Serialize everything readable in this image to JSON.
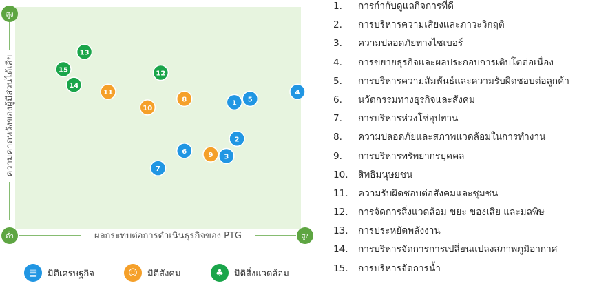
{
  "colors": {
    "economic": "#2196e3",
    "social": "#f5a02a",
    "environment": "#1aa54a",
    "plot_bg": "#e7f4df",
    "axis": "#5ea542"
  },
  "axis_labels": {
    "x": "ผลกระทบต่อการดำเนินธุรกิจของ PTG",
    "y": "ความคาดหวังของผู้มีส่วนได้เสีย",
    "low": "ต่ำ",
    "high_x": "สูง",
    "high_y": "สูง"
  },
  "legend": [
    {
      "icon": "chart-screen-icon",
      "label": "มิติเศรษฐกิจ",
      "color": "#2196e3"
    },
    {
      "icon": "people-icon",
      "label": "มิติสังคม",
      "color": "#f5a02a"
    },
    {
      "icon": "plant-icon",
      "label": "มิติสิ่งแวดล้อม",
      "color": "#1aa54a"
    }
  ],
  "chart_data": {
    "type": "scatter",
    "xlabel": "ผลกระทบต่อการดำเนินธุรกิจของ PTG",
    "ylabel": "ความคาดหวังของผู้มีส่วนได้เสีย",
    "xlim": [
      0,
      10
    ],
    "ylim": [
      0,
      10
    ],
    "grid": false,
    "points": [
      {
        "id": "1",
        "x": 7.6,
        "y": 5.7,
        "category": "economic"
      },
      {
        "id": "2",
        "x": 7.7,
        "y": 3.6,
        "category": "economic"
      },
      {
        "id": "3",
        "x": 7.3,
        "y": 2.6,
        "category": "economic"
      },
      {
        "id": "4",
        "x": 10.0,
        "y": 6.3,
        "category": "economic"
      },
      {
        "id": "5",
        "x": 8.2,
        "y": 5.9,
        "category": "economic"
      },
      {
        "id": "6",
        "x": 5.7,
        "y": 2.9,
        "category": "economic"
      },
      {
        "id": "7",
        "x": 4.7,
        "y": 1.9,
        "category": "economic"
      },
      {
        "id": "8",
        "x": 5.7,
        "y": 5.9,
        "category": "social"
      },
      {
        "id": "9",
        "x": 6.7,
        "y": 2.7,
        "category": "social"
      },
      {
        "id": "10",
        "x": 4.3,
        "y": 5.4,
        "category": "social"
      },
      {
        "id": "11",
        "x": 2.8,
        "y": 6.3,
        "category": "social"
      },
      {
        "id": "12",
        "x": 4.8,
        "y": 7.4,
        "category": "environment"
      },
      {
        "id": "13",
        "x": 1.9,
        "y": 8.6,
        "category": "environment"
      },
      {
        "id": "14",
        "x": 1.5,
        "y": 6.7,
        "category": "environment"
      },
      {
        "id": "15",
        "x": 1.1,
        "y": 7.6,
        "category": "environment"
      }
    ]
  },
  "topics": [
    {
      "num": "1.",
      "text": "การกำกับดูแลกิจการที่ดี"
    },
    {
      "num": "2.",
      "text": "การบริหารความเสี่ยงและภาวะวิกฤติ"
    },
    {
      "num": "3.",
      "text": "ความปลอดภัยทางไซเบอร์"
    },
    {
      "num": "4.",
      "text": "การขยายธุรกิจและผลประกอบการเติบโตต่อเนื่อง"
    },
    {
      "num": "5.",
      "text": "การบริหารความสัมพันธ์และความรับผิดชอบต่อลูกค้า"
    },
    {
      "num": "6.",
      "text": "นวัตกรรมทางธุรกิจและสังคม"
    },
    {
      "num": "7.",
      "text": "การบริหารห่วงโซ่อุปทาน"
    },
    {
      "num": "8.",
      "text": "ความปลอดภัยและสภาพแวดล้อมในการทำงาน"
    },
    {
      "num": "9.",
      "text": "การบริหารทรัพยากรบุคคล"
    },
    {
      "num": "10.",
      "text": "สิทธิมนุษยชน"
    },
    {
      "num": "11.",
      "text": "ความรับผิดชอบต่อสังคมและชุมชน"
    },
    {
      "num": "12.",
      "text": "การจัดการสิ่งแวดล้อม ขยะ ของเสีย และมลพิษ"
    },
    {
      "num": "13.",
      "text": "การประหยัดพลังงาน"
    },
    {
      "num": "14.",
      "text": "การบริหารจัดการการเปลี่ยนแปลงสภาพภูมิอากาศ"
    },
    {
      "num": "15.",
      "text": "การบริหารจัดการน้ำ"
    }
  ]
}
